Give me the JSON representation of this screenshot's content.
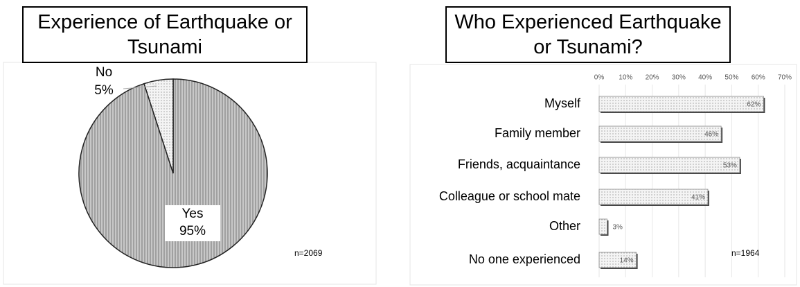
{
  "chart_data": [
    {
      "type": "pie",
      "title": "Experience of Earthquake or Tsunami",
      "categories": [
        "Yes",
        "No"
      ],
      "values": [
        95,
        5
      ],
      "value_labels": [
        "95%",
        "5%"
      ],
      "annotation": "n=2069"
    },
    {
      "type": "hbar",
      "title": "Who Experienced Earthquake or Tsunami?",
      "categories": [
        "Myself",
        "Family member",
        "Friends, acquaintance",
        "Colleague or school mate",
        "Other",
        "No one experienced"
      ],
      "values": [
        62,
        46,
        53,
        41,
        3,
        14
      ],
      "value_labels": [
        "62%",
        "46%",
        "53%",
        "41%",
        "3%",
        "14%"
      ],
      "xlim": [
        0,
        70
      ],
      "xticks": [
        {
          "value": 0,
          "label": "0%"
        },
        {
          "value": 10,
          "label": "10%"
        },
        {
          "value": 20,
          "label": "20%"
        },
        {
          "value": 30,
          "label": "30%"
        },
        {
          "value": 40,
          "label": "40%"
        },
        {
          "value": 50,
          "label": "50%"
        },
        {
          "value": 60,
          "label": "60%"
        },
        {
          "value": 70,
          "label": "70%"
        }
      ],
      "grid": true,
      "annotation": "n=1964"
    }
  ]
}
